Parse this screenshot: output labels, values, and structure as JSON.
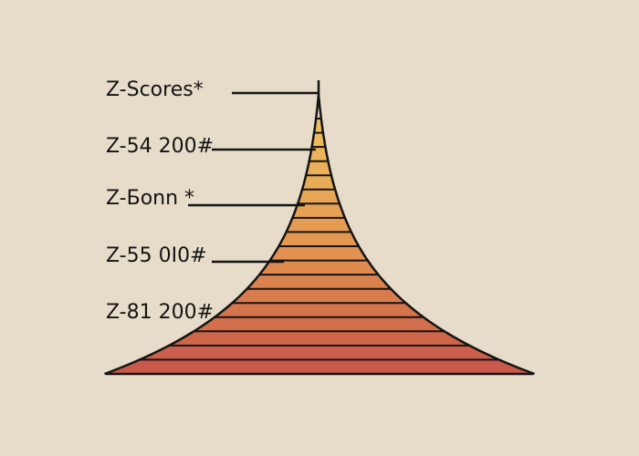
{
  "labels": [
    "Z-Scores*",
    "Z-54 200#",
    "Z-Бonn *",
    "Z-55 0I0#",
    "Z-81 200#"
  ],
  "colors": {
    "background": "#e6dcc9",
    "outline": "#141414",
    "band_top": "#edbe5e",
    "band_middle": "#e39550",
    "band_bottom": "#c8584a"
  }
}
